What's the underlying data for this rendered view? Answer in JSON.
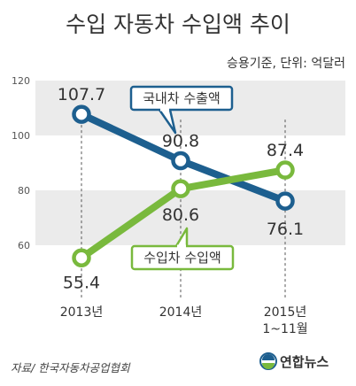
{
  "title": "수입 자동차 수입액 추이",
  "unit_note": "승용기준, 단위: 억달러",
  "source": "자료/ 한국자동차공업협회",
  "logo_text": "연합뉴스",
  "colors": {
    "export_series": "#1d5f8f",
    "import_series": "#79b93d",
    "band": "#ebebeb",
    "logo_blue": "#1d5f8f",
    "logo_green": "#79b93d"
  },
  "chart_data": {
    "type": "line",
    "title": "수입 자동차 수입액 추이",
    "categories": [
      [
        "2013년"
      ],
      [
        "2014년"
      ],
      [
        "2015년",
        "1~11월"
      ]
    ],
    "ylabel": "",
    "xlabel": "",
    "ylim": [
      60,
      120
    ],
    "yticks": [
      60,
      80,
      100,
      120
    ],
    "grid": "alternating horizontal bands",
    "legend": "inline callout boxes",
    "series": [
      {
        "name": "국내차 수출액",
        "color": "#1d5f8f",
        "values": [
          107.7,
          90.8,
          76.1
        ],
        "labels": [
          "107.7",
          "90.8",
          "76.1"
        ]
      },
      {
        "name": "수입차 수입액",
        "color": "#79b93d",
        "values": [
          55.4,
          80.6,
          87.4
        ],
        "labels": [
          "55.4",
          "80.6",
          "87.4"
        ]
      }
    ]
  }
}
